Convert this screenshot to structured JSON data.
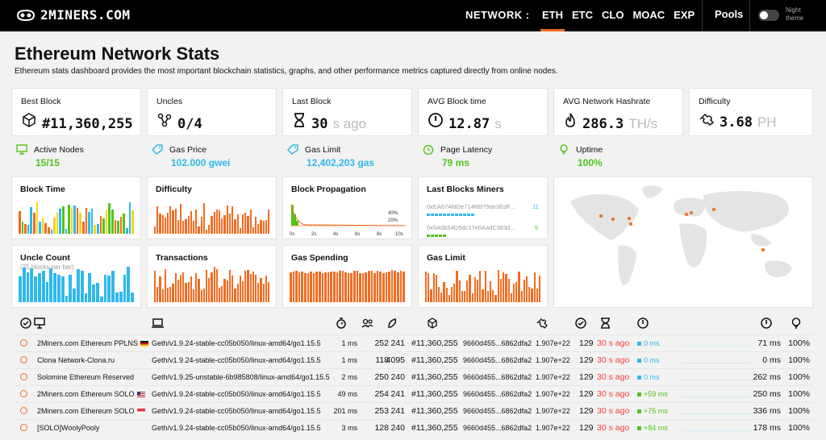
{
  "brand": "2MINERS.COM",
  "nav": {
    "label": "NETWORK :",
    "items": [
      "ETH",
      "ETC",
      "CLO",
      "MOAC",
      "EXP"
    ],
    "pools": "Pools",
    "night": "Night theme"
  },
  "title": "Ethereum Network Stats",
  "subtitle": "Ethereum stats dashboard provides the most important blockchain statistics, graphs, and other performance metrics captured directly from online nodes.",
  "stats": [
    {
      "label": "Best Block",
      "value": "#11,360,255",
      "unit": "",
      "icon": "cube-icon"
    },
    {
      "label": "Uncles",
      "value": "0/4",
      "unit": "",
      "icon": "uncles-icon"
    },
    {
      "label": "Last Block",
      "value": "30",
      "unit": "s ago",
      "icon": "hourglass-icon"
    },
    {
      "label": "AVG Block time",
      "value": "12.87",
      "unit": "s",
      "icon": "clock-icon"
    },
    {
      "label": "AVG Network Hashrate",
      "value": "286.3",
      "unit": "TH/s",
      "icon": "flame-icon"
    },
    {
      "label": "Difficulty",
      "value": "3.68",
      "unit": "PH",
      "icon": "puzzle-icon"
    }
  ],
  "metrics": [
    {
      "label": "Active Nodes",
      "value": "15/15",
      "color": "#51c41a"
    },
    {
      "label": "Gas Price",
      "value": "102.000 gwei",
      "color": "#2fb8ea"
    },
    {
      "label": "Gas Limit",
      "value": "12,402,203 gas",
      "color": "#2fb8ea"
    },
    {
      "label": "Page Latency",
      "value": "79 ms",
      "color": "#51c41a"
    },
    {
      "label": "Uptime",
      "value": "100%",
      "color": "#51c41a"
    }
  ],
  "charts": {
    "block_time": "Block Time",
    "difficulty": "Difficulty",
    "propagation": "Block Propagation",
    "propagation_ticks": [
      "0s",
      "2s",
      "4s",
      "6s",
      "8s",
      "10s"
    ],
    "propagation_pcts": [
      "40%",
      "20%"
    ],
    "miners_title": "Last Blocks Miners",
    "miners": [
      {
        "addr": "0xEA674fdDe714fd979de3EdF...",
        "count": "11"
      },
      {
        "addr": "0x5A0b54D5dc17e0AadC383d...",
        "count": "5"
      }
    ],
    "uncle_count": "Uncle Count",
    "uncle_sub": "(25 blocks per bar)",
    "transactions": "Transactions",
    "gas_spending": "Gas Spending",
    "gas_limit": "Gas Limit"
  },
  "nodes": [
    {
      "name": "2Miners.com Ethereum PPLNS",
      "flag": "de",
      "client": "Geth/v1.9.24-stable-cc05b050/linux-amd64/go1.15.5",
      "latency": "1 ms",
      "peers": "252",
      "pending": "241",
      "block": "#11,360,255",
      "hash": "9660d455...6862dfa2",
      "diff": "1.907e+22",
      "txs": "129",
      "ago": "30 s ago",
      "prop": "0 ms",
      "prop_color": "#2fb8ea",
      "avg": "71 ms",
      "uptime": "100%"
    },
    {
      "name": "Clona Network-Clona.ru",
      "flag": "",
      "client": "Geth/v1.9.24-stable-cc05b050/linux-amd64/go1.15.5",
      "latency": "1 ms",
      "peers": "118",
      "pending": "4095",
      "block": "#11,360,255",
      "hash": "9660d455...6862dfa2",
      "diff": "1.907e+22",
      "txs": "129",
      "ago": "30 s ago",
      "prop": "0 ms",
      "prop_color": "#2fb8ea",
      "avg": "0 ms",
      "uptime": "100%"
    },
    {
      "name": "Solomine Ethereum Reserved",
      "flag": "",
      "client": "Geth/v1.9.25-unstable-6b985808/linux-amd64/go1.15.5",
      "latency": "2 ms",
      "peers": "250",
      "pending": "240",
      "block": "#11,360,255",
      "hash": "9660d455...6862dfa2",
      "diff": "1.907e+22",
      "txs": "129",
      "ago": "30 s ago",
      "prop": "0 ms",
      "prop_color": "#2fb8ea",
      "avg": "262 ms",
      "uptime": "100%"
    },
    {
      "name": "2Miners.com Ethereum SOLO",
      "flag": "us",
      "client": "Geth/v1.9.24-stable-cc05b050/linux-amd64/go1.15.5",
      "latency": "49 ms",
      "peers": "254",
      "pending": "241",
      "block": "#11,360,255",
      "hash": "9660d455...6862dfa2",
      "diff": "1.907e+22",
      "txs": "129",
      "ago": "30 s ago",
      "prop": "+59 ms",
      "prop_color": "#51c41a",
      "avg": "250 ms",
      "uptime": "100%"
    },
    {
      "name": "2Miners.com Ethereum SOLO",
      "flag": "sg",
      "client": "Geth/v1.9.24-stable-cc05b050/linux-amd64/go1.15.5",
      "latency": "201 ms",
      "peers": "253",
      "pending": "241",
      "block": "#11,360,255",
      "hash": "9660d455...6862dfa2",
      "diff": "1.907e+22",
      "txs": "129",
      "ago": "30 s ago",
      "prop": "+75 ms",
      "prop_color": "#51c41a",
      "avg": "336 ms",
      "uptime": "100%"
    },
    {
      "name": "[SOLO]WoolyPooly",
      "flag": "",
      "client": "Geth/v1.9.24-stable-cc05b050/linux-amd64/go1.15.5",
      "latency": "3 ms",
      "peers": "128",
      "pending": "240",
      "block": "#11,360,255",
      "hash": "9660d455...6862dfa2",
      "diff": "1.907e+22",
      "txs": "129",
      "ago": "30 s ago",
      "prop": "+84 ms",
      "prop_color": "#51c41a",
      "avg": "178 ms",
      "uptime": "100%"
    }
  ]
}
